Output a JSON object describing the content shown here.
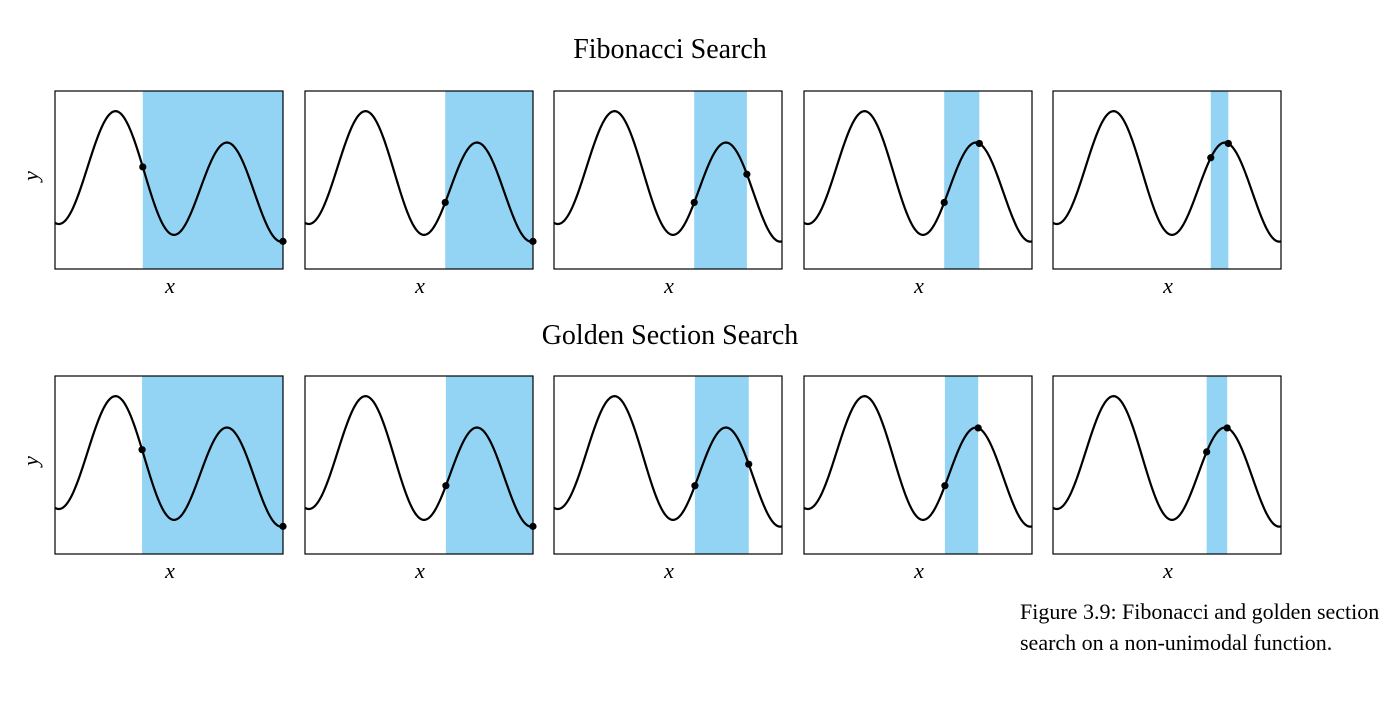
{
  "figure": {
    "caption": "Figure 3.9: Fibonacci and golden section search on a non-unimodal function."
  },
  "colors": {
    "interval": "#93d3f4",
    "curve": "#000000",
    "frame": "#000000"
  },
  "chart_data": [
    {
      "type": "line",
      "title": "Fibonacci Search",
      "xlabel": "x",
      "ylabel": "y",
      "grid": false,
      "panels": [
        {
          "interval": [
            0.385,
            1.0
          ],
          "points": [
            0.385,
            1.0
          ]
        },
        {
          "interval": [
            0.615,
            1.0
          ],
          "points": [
            0.615,
            1.0
          ]
        },
        {
          "interval": [
            0.615,
            0.846
          ],
          "points": [
            0.615,
            0.846
          ]
        },
        {
          "interval": [
            0.615,
            0.769
          ],
          "points": [
            0.615,
            0.769
          ]
        },
        {
          "interval": [
            0.692,
            0.769
          ],
          "points": [
            0.692,
            0.769
          ]
        }
      ]
    },
    {
      "type": "line",
      "title": "Golden Section Search",
      "xlabel": "x",
      "ylabel": "y",
      "grid": false,
      "panels": [
        {
          "interval": [
            0.382,
            1.0
          ],
          "points": [
            0.382,
            1.0
          ]
        },
        {
          "interval": [
            0.618,
            1.0
          ],
          "points": [
            0.618,
            1.0
          ]
        },
        {
          "interval": [
            0.618,
            0.854
          ],
          "points": [
            0.618,
            0.854
          ]
        },
        {
          "interval": [
            0.618,
            0.764
          ],
          "points": [
            0.618,
            0.764
          ]
        },
        {
          "interval": [
            0.674,
            0.764
          ],
          "points": [
            0.674,
            0.764
          ]
        }
      ]
    }
  ]
}
